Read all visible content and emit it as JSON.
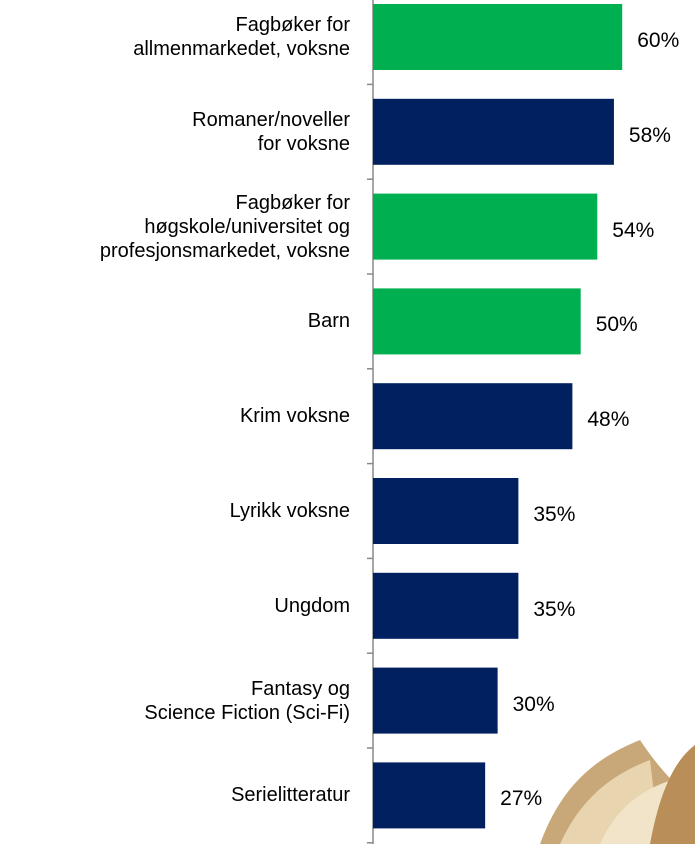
{
  "chart_data": {
    "type": "hbar",
    "categories": [
      "Fagbøker for\nallmenmarkedet, voksne",
      "Romaner/noveller\nfor voksne",
      "Fagbøker for\nhøgskole/universitet og\nprofesjonsmarkedet, voksne",
      "Barn",
      "Krim voksne",
      "Lyrikk voksne",
      "Ungdom",
      "Fantasy og\nScience Fiction (Sci-Fi)",
      "Serielitteratur"
    ],
    "values": [
      60,
      58,
      54,
      50,
      48,
      35,
      35,
      30,
      27
    ],
    "value_labels": [
      "60%",
      "58%",
      "54%",
      "50%",
      "48%",
      "35%",
      "35%",
      "30%",
      "27%"
    ],
    "colors": [
      "#00b050",
      "#002060",
      "#00b050",
      "#00b050",
      "#002060",
      "#002060",
      "#002060",
      "#002060",
      "#002060"
    ],
    "xlim": [
      0,
      78
    ]
  }
}
